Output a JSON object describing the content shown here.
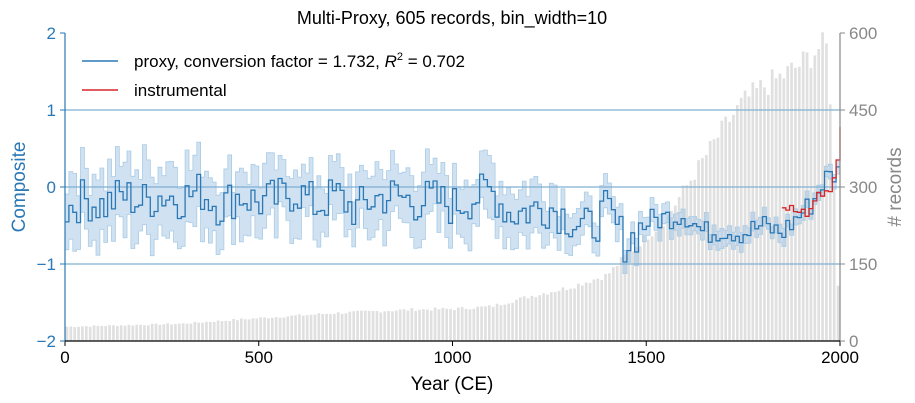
{
  "chart_data": {
    "type": "line",
    "title": "Multi-Proxy,  605 records, bin_width=10",
    "xlabel": "Year (CE)",
    "ylabel": "Composite",
    "y2label": "# records",
    "xlim": [
      0,
      2000
    ],
    "ylim": [
      -2,
      2
    ],
    "y2lim": [
      0,
      600
    ],
    "xticks": [
      0,
      500,
      1000,
      1500,
      2000
    ],
    "yticks": [
      -2,
      -1,
      0,
      1,
      2
    ],
    "y2ticks": [
      0,
      150,
      300,
      450,
      600
    ],
    "hlines": [
      -1,
      0,
      1
    ],
    "bin_width": 10,
    "legend": {
      "placement": "top-left",
      "entries": [
        {
          "label": "proxy, conversion factor = 1.732, R² = 0.702",
          "prefix": "proxy, conversion factor = 1.732, ",
          "r_symbol": "R",
          "r_sup": "2",
          "suffix": " = 0.702"
        },
        {
          "label": "instrumental"
        }
      ]
    },
    "colors": {
      "proxy": "#2a78b5",
      "band": "#a9cbe5",
      "instrumental": "#d62728",
      "bars": "#e0e0e0",
      "left_axis": "#2a78b5",
      "right_axis": "#888888",
      "hline": "#7fb0d3"
    },
    "counts_anchors": [
      [
        0,
        28
      ],
      [
        100,
        30
      ],
      [
        300,
        34
      ],
      [
        500,
        45
      ],
      [
        700,
        55
      ],
      [
        900,
        62
      ],
      [
        1000,
        63
      ],
      [
        1100,
        68
      ],
      [
        1200,
        88
      ],
      [
        1300,
        105
      ],
      [
        1400,
        130
      ],
      [
        1450,
        170
      ],
      [
        1500,
        205
      ],
      [
        1550,
        240
      ],
      [
        1600,
        300
      ],
      [
        1650,
        360
      ],
      [
        1700,
        420
      ],
      [
        1750,
        470
      ],
      [
        1800,
        500
      ],
      [
        1850,
        520
      ],
      [
        1900,
        545
      ],
      [
        1950,
        580
      ],
      [
        1970,
        575
      ],
      [
        2000,
        20
      ]
    ],
    "proxy_anchors": [
      [
        0,
        -0.3
      ],
      [
        50,
        -0.15
      ],
      [
        100,
        -0.25
      ],
      [
        150,
        -0.1
      ],
      [
        200,
        -0.2
      ],
      [
        250,
        -0.1
      ],
      [
        300,
        -0.15
      ],
      [
        350,
        -0.05
      ],
      [
        400,
        -0.25
      ],
      [
        450,
        -0.1
      ],
      [
        500,
        -0.2
      ],
      [
        550,
        -0.15
      ],
      [
        600,
        -0.05
      ],
      [
        650,
        -0.25
      ],
      [
        700,
        -0.1
      ],
      [
        750,
        -0.3
      ],
      [
        800,
        -0.15
      ],
      [
        850,
        -0.1
      ],
      [
        900,
        -0.2
      ],
      [
        950,
        -0.15
      ],
      [
        1000,
        -0.25
      ],
      [
        1050,
        -0.15
      ],
      [
        1100,
        -0.05
      ],
      [
        1150,
        -0.35
      ],
      [
        1200,
        -0.3
      ],
      [
        1250,
        -0.25
      ],
      [
        1300,
        -0.4
      ],
      [
        1350,
        -0.55
      ],
      [
        1400,
        -0.3
      ],
      [
        1450,
        -0.75
      ],
      [
        1500,
        -0.45
      ],
      [
        1550,
        -0.4
      ],
      [
        1600,
        -0.35
      ],
      [
        1650,
        -0.6
      ],
      [
        1700,
        -0.55
      ],
      [
        1750,
        -0.6
      ],
      [
        1800,
        -0.5
      ],
      [
        1850,
        -0.6
      ],
      [
        1880,
        -0.45
      ],
      [
        1900,
        -0.35
      ],
      [
        1930,
        -0.2
      ],
      [
        1960,
        0.1
      ],
      [
        2000,
        0.2
      ]
    ],
    "band_halfwidth_anchors": [
      [
        0,
        0.45
      ],
      [
        500,
        0.38
      ],
      [
        1000,
        0.35
      ],
      [
        1200,
        0.3
      ],
      [
        1400,
        0.22
      ],
      [
        1500,
        0.15
      ],
      [
        1600,
        0.12
      ],
      [
        1800,
        0.1
      ],
      [
        2000,
        0.08
      ]
    ],
    "instrumental": [
      [
        1850,
        -0.27
      ],
      [
        1860,
        -0.3
      ],
      [
        1870,
        -0.24
      ],
      [
        1880,
        -0.32
      ],
      [
        1890,
        -0.33
      ],
      [
        1900,
        -0.29
      ],
      [
        1910,
        -0.38
      ],
      [
        1920,
        -0.28
      ],
      [
        1930,
        -0.18
      ],
      [
        1940,
        -0.07
      ],
      [
        1950,
        -0.12
      ],
      [
        1960,
        -0.05
      ],
      [
        1970,
        -0.06
      ],
      [
        1980,
        0.12
      ],
      [
        1990,
        0.35
      ],
      [
        2000,
        0.78
      ]
    ]
  }
}
